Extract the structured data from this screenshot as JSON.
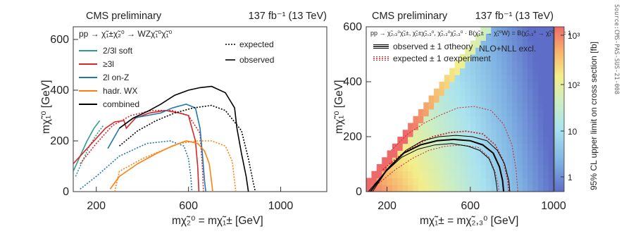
{
  "source_note": "Source:CMS-PAS-SUS-21-008",
  "chart_data": [
    {
      "type": "line",
      "header": {
        "left": "CMS  preliminary",
        "right": "137 fb⁻¹ (13 TeV)"
      },
      "process": "pp → χ̃₁±χ̃₂⁰ → WZχ̃₁⁰χ̃₁⁰",
      "xlabel": "mχ̃₂⁰ = mχ̃₁± [GeV]",
      "ylabel": "mχ̃₁⁰ [GeV]",
      "xlim": [
        100,
        1200
      ],
      "ylim": [
        0,
        650
      ],
      "xticks": [
        200,
        600,
        1000
      ],
      "yticks": [
        0,
        200,
        400,
        600
      ],
      "style_legend": [
        {
          "label": "expected",
          "dash": true
        },
        {
          "label": "observed",
          "dash": false
        }
      ],
      "series": [
        {
          "name": "2/3l soft",
          "color": "#2a9d8f",
          "observed": [
            [
              100,
              80
            ],
            [
              130,
              140
            ],
            [
              160,
              200
            ],
            [
              190,
              250
            ],
            [
              215,
              280
            ]
          ],
          "expected": [
            [
              110,
              60
            ],
            [
              140,
              120
            ],
            [
              170,
              180
            ],
            [
              205,
              230
            ],
            [
              230,
              260
            ]
          ]
        },
        {
          "name": "≥3l",
          "color": "#d62728",
          "observed": [
            [
              100,
              110
            ],
            [
              180,
              190
            ],
            [
              240,
              250
            ],
            [
              280,
              275
            ],
            [
              320,
              280
            ],
            [
              330,
              250
            ],
            [
              370,
              290
            ],
            [
              430,
              310
            ],
            [
              500,
              320
            ],
            [
              560,
              310
            ],
            [
              600,
              300
            ],
            [
              630,
              200
            ],
            [
              640,
              100
            ],
            [
              645,
              0
            ]
          ],
          "expected": [
            [
              130,
              110
            ],
            [
              200,
              190
            ],
            [
              270,
              260
            ],
            [
              350,
              300
            ],
            [
              440,
              320
            ],
            [
              530,
              320
            ],
            [
              600,
              300
            ],
            [
              650,
              230
            ],
            [
              660,
              100
            ],
            [
              665,
              0
            ]
          ]
        },
        {
          "name": "2l on-Z",
          "color": "#1f77b4",
          "observed": [
            [
              250,
              170
            ],
            [
              300,
              250
            ],
            [
              360,
              290
            ],
            [
              420,
              300
            ],
            [
              480,
              310
            ],
            [
              530,
              330
            ],
            [
              590,
              345
            ],
            [
              630,
              330
            ],
            [
              650,
              250
            ],
            [
              660,
              150
            ],
            [
              670,
              40
            ],
            [
              675,
              0
            ]
          ],
          "expected": [
            [
              130,
              10
            ],
            [
              200,
              60
            ],
            [
              300,
              140
            ],
            [
              420,
              190
            ],
            [
              520,
              200
            ],
            [
              580,
              180
            ],
            [
              600,
              130
            ],
            [
              610,
              60
            ],
            [
              615,
              0
            ]
          ]
        },
        {
          "name": "hadr. WX",
          "color": "#ff7f0e",
          "observed": [
            [
              260,
              10
            ],
            [
              300,
              60
            ],
            [
              380,
              110
            ],
            [
              460,
              150
            ],
            [
              530,
              180
            ],
            [
              590,
              200
            ],
            [
              640,
              190
            ],
            [
              670,
              160
            ],
            [
              690,
              110
            ],
            [
              700,
              40
            ],
            [
              705,
              0
            ]
          ],
          "expected": [
            [
              280,
              0
            ],
            [
              300,
              80
            ],
            [
              400,
              130
            ],
            [
              480,
              160
            ],
            [
              560,
              190
            ],
            [
              640,
              200
            ],
            [
              700,
              200
            ],
            [
              760,
              180
            ],
            [
              790,
              120
            ],
            [
              800,
              40
            ],
            [
              805,
              0
            ]
          ]
        },
        {
          "name": "combined",
          "color": "#000000",
          "observed": [
            [
              300,
              250
            ],
            [
              360,
              290
            ],
            [
              430,
              320
            ],
            [
              480,
              345
            ],
            [
              540,
              380
            ],
            [
              600,
              400
            ],
            [
              650,
              410
            ],
            [
              700,
              415
            ],
            [
              760,
              390
            ],
            [
              800,
              330
            ],
            [
              810,
              250
            ],
            [
              830,
              150
            ],
            [
              850,
              60
            ],
            [
              860,
              0
            ]
          ],
          "expected": [
            [
              300,
              180
            ],
            [
              380,
              240
            ],
            [
              460,
              280
            ],
            [
              540,
              310
            ],
            [
              620,
              330
            ],
            [
              700,
              340
            ],
            [
              760,
              320
            ],
            [
              830,
              240
            ],
            [
              860,
              130
            ],
            [
              880,
              40
            ],
            [
              890,
              0
            ]
          ]
        }
      ]
    },
    {
      "type": "heatmap",
      "header": {
        "left": "CMS  preliminary",
        "right": "137 fb⁻¹ (13 TeV)"
      },
      "process": "pp → χ̃₂,₃⁰χ̃₁±, χ̃₁±χ̃₂,₃⁰, χ̃₂,₃⁰χ̃₂,₃⁰ · B(χ̃₁± → χ̃₁⁰W) = B(χ̃₂,₃⁰ → χ̃₁⁰H) = 1",
      "note": "NLO+NLL excl.",
      "legend": [
        {
          "label": "observed ± 1 σtheory",
          "color": "#000000",
          "dash": false
        },
        {
          "label": "expected ± 1 σexperiment",
          "color": "#c62828",
          "dash": true
        }
      ],
      "xlabel": "mχ̃₁± = mχ̃₂,₃⁰ [GeV]",
      "ylabel": "mχ̃₁⁰ [GeV]",
      "zlabel": "95% CL upper limit on cross section [fb]",
      "xlim": [
        100,
        1000
      ],
      "ylim": [
        0,
        600
      ],
      "xticks": [
        200,
        600,
        1000
      ],
      "yticks": [
        0,
        200,
        400,
        600
      ],
      "zticks": [
        "1",
        "10",
        "10²",
        "10³"
      ],
      "observed": [
        [
          120,
          0
        ],
        [
          200,
          80
        ],
        [
          280,
          140
        ],
        [
          360,
          170
        ],
        [
          440,
          185
        ],
        [
          520,
          190
        ],
        [
          600,
          185
        ],
        [
          660,
          170
        ],
        [
          710,
          140
        ],
        [
          740,
          90
        ],
        [
          755,
          40
        ],
        [
          760,
          0
        ]
      ],
      "observed_plus": [
        [
          130,
          0
        ],
        [
          210,
          90
        ],
        [
          290,
          150
        ],
        [
          370,
          185
        ],
        [
          450,
          200
        ],
        [
          530,
          205
        ],
        [
          610,
          200
        ],
        [
          680,
          185
        ],
        [
          730,
          150
        ],
        [
          765,
          100
        ],
        [
          785,
          40
        ],
        [
          790,
          0
        ]
      ],
      "observed_minus": [
        [
          110,
          0
        ],
        [
          190,
          70
        ],
        [
          270,
          125
        ],
        [
          350,
          155
        ],
        [
          430,
          170
        ],
        [
          510,
          175
        ],
        [
          590,
          165
        ],
        [
          645,
          150
        ],
        [
          690,
          120
        ],
        [
          715,
          75
        ],
        [
          725,
          30
        ],
        [
          730,
          0
        ]
      ],
      "expected": [
        [
          180,
          80
        ],
        [
          260,
          130
        ],
        [
          340,
          170
        ],
        [
          420,
          200
        ],
        [
          500,
          215
        ],
        [
          580,
          220
        ],
        [
          660,
          210
        ],
        [
          720,
          170
        ],
        [
          760,
          110
        ],
        [
          780,
          40
        ],
        [
          785,
          0
        ]
      ],
      "expected_plus": [
        [
          220,
          150
        ],
        [
          300,
          210
        ],
        [
          380,
          250
        ],
        [
          460,
          280
        ],
        [
          540,
          305
        ],
        [
          620,
          310
        ],
        [
          700,
          295
        ],
        [
          760,
          245
        ],
        [
          800,
          170
        ],
        [
          820,
          80
        ],
        [
          828,
          0
        ]
      ],
      "expected_minus": [
        [
          160,
          30
        ],
        [
          240,
          80
        ],
        [
          320,
          120
        ],
        [
          400,
          150
        ],
        [
          480,
          165
        ],
        [
          560,
          170
        ],
        [
          640,
          160
        ],
        [
          690,
          125
        ],
        [
          720,
          70
        ],
        [
          735,
          20
        ],
        [
          738,
          0
        ]
      ]
    }
  ]
}
